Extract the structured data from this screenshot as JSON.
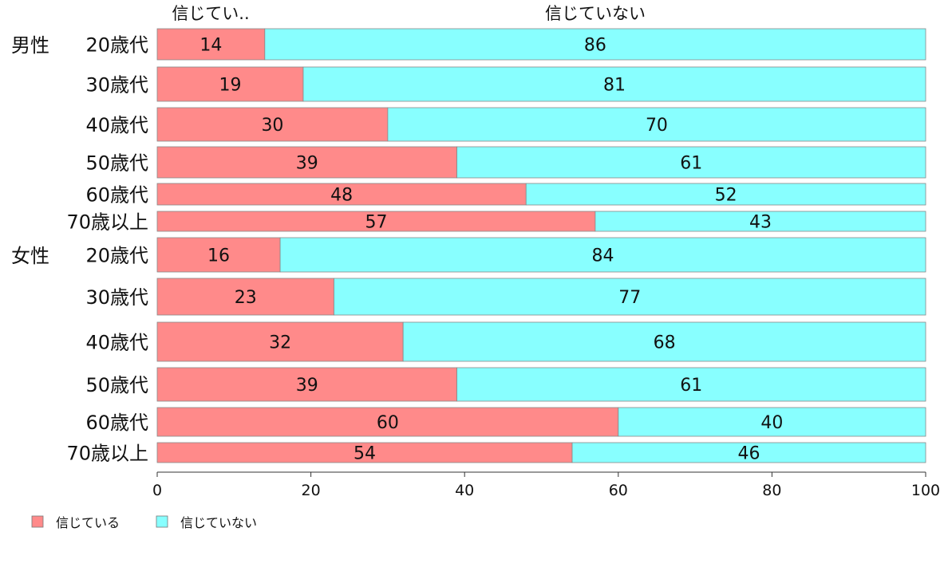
{
  "chart_data": {
    "type": "bar",
    "orientation": "horizontal",
    "stacked": true,
    "title": "",
    "xlabel": "",
    "ylabel": "",
    "xlim": [
      0,
      100
    ],
    "x_ticks": [
      0,
      20,
      40,
      60,
      80,
      100
    ],
    "grid": false,
    "legend_position": "bottom-left",
    "column_headers": [
      "信じてい..",
      "信じていない"
    ],
    "groups": [
      {
        "name": "男性",
        "categories": [
          "20歳代",
          "30歳代",
          "40歳代",
          "50歳代",
          "60歳代",
          "70歳以上"
        ]
      },
      {
        "name": "女性",
        "categories": [
          "20歳代",
          "30歳代",
          "40歳代",
          "50歳代",
          "60歳代",
          "70歳以上"
        ]
      }
    ],
    "series": [
      {
        "name": "信じている",
        "color": "#ff8a8a",
        "values": [
          14,
          19,
          30,
          39,
          48,
          57,
          16,
          23,
          32,
          39,
          60,
          54
        ]
      },
      {
        "name": "信じていない",
        "color": "#88ffff",
        "values": [
          86,
          81,
          70,
          61,
          52,
          43,
          84,
          77,
          68,
          61,
          40,
          46
        ]
      }
    ]
  }
}
